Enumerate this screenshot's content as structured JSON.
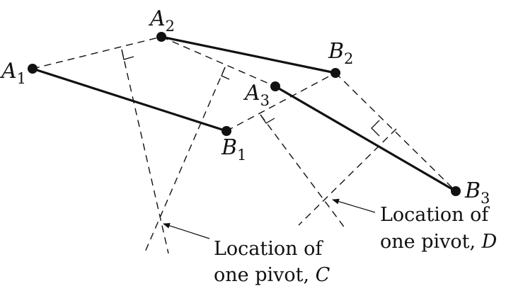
{
  "points": {
    "A1": {
      "letter": "A",
      "sub": "1"
    },
    "A2": {
      "letter": "A",
      "sub": "2"
    },
    "A3": {
      "letter": "A",
      "sub": "3"
    },
    "B1": {
      "letter": "B",
      "sub": "1"
    },
    "B2": {
      "letter": "B",
      "sub": "2"
    },
    "B3": {
      "letter": "B",
      "sub": "3"
    }
  },
  "callouts": {
    "pivot_c": {
      "line1": "Location of",
      "line2_prefix": "one pivot, ",
      "line2_var": "C"
    },
    "pivot_d": {
      "line1": "Location of",
      "line2_prefix": "one pivot, ",
      "line2_var": "D"
    }
  },
  "colors": {
    "ink": "#111111",
    "background": "#ffffff"
  }
}
